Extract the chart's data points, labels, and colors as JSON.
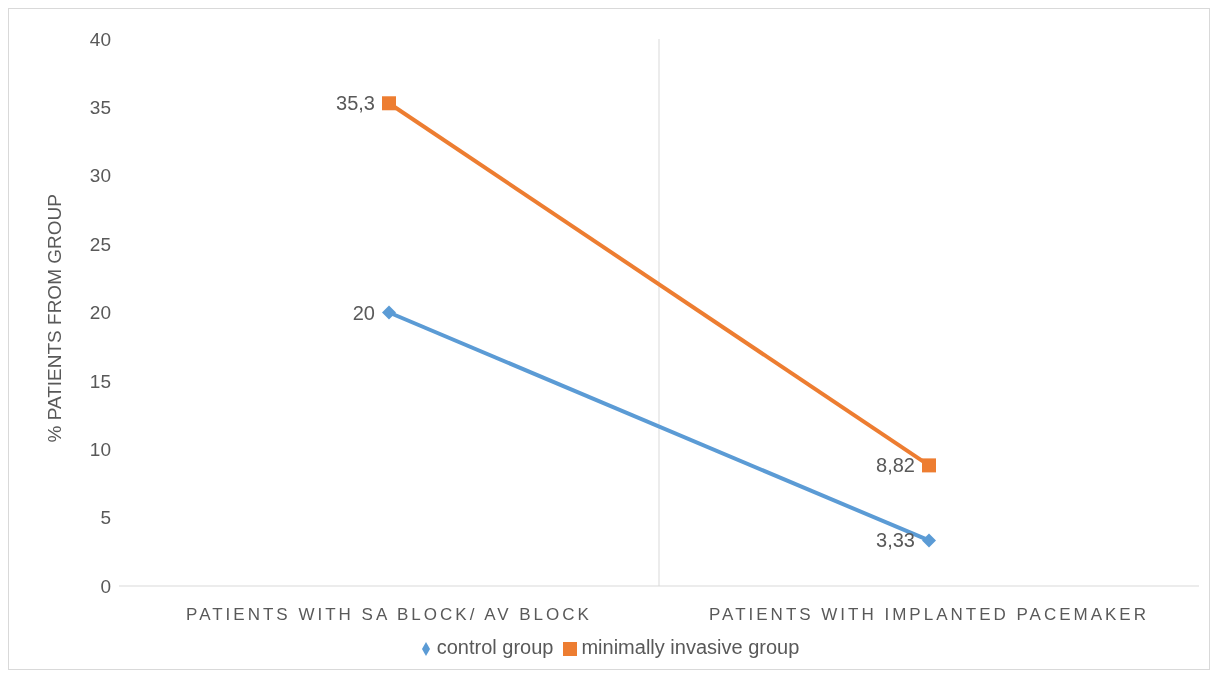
{
  "chart_data": {
    "type": "line",
    "ylabel": "% PATIENTS FROM GROUP",
    "categories": [
      "PATIENTS WITH SA BLOCK/ AV BLOCK",
      "PATIENTS WITH IMPLANTED PACEMAKER"
    ],
    "series": [
      {
        "name": "control group",
        "color": "#5b9bd5",
        "marker": "diamond",
        "values": [
          20,
          3.33
        ],
        "value_labels": [
          "20",
          "3,33"
        ]
      },
      {
        "name": "minimally invasive group",
        "color": "#ed7d31",
        "marker": "square",
        "values": [
          35.3,
          8.82
        ],
        "value_labels": [
          "35,3",
          "8,82"
        ]
      }
    ],
    "ylim": [
      0,
      40
    ],
    "yticks": [
      0,
      5,
      10,
      15,
      20,
      25,
      30,
      35,
      40
    ],
    "grid": "x",
    "legend": "bottom",
    "line_style": "solid"
  }
}
